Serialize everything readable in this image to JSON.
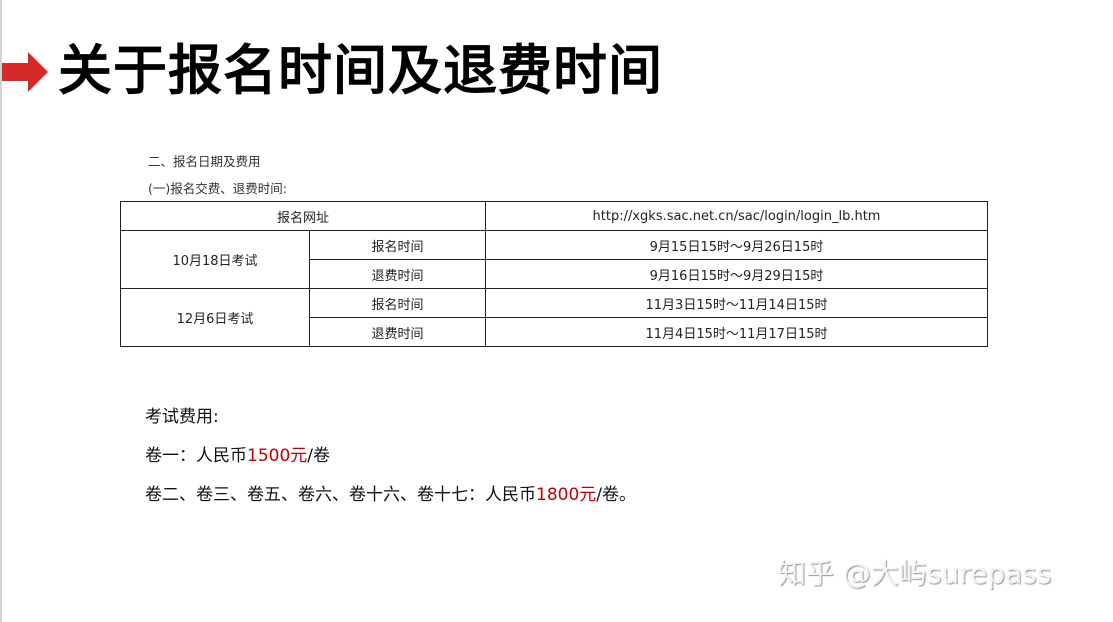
{
  "title": "关于报名时间及退费时间",
  "section": "二、报名日期及费用",
  "subsection": "(一)报名交费、退费时间:",
  "table": {
    "url_label": "报名网址",
    "url": "http://xgks.sac.net.cn/sac/login/login_lb.htm",
    "groups": [
      {
        "exam": "10月18日考试",
        "rows": [
          {
            "label": "报名时间",
            "value": "9月15日15时～9月26日15时"
          },
          {
            "label": "退费时间",
            "value": "9月16日15时～9月29日15时"
          }
        ]
      },
      {
        "exam": "12月6日考试",
        "rows": [
          {
            "label": "报名时间",
            "value": "11月3日15时～11月14日15时"
          },
          {
            "label": "退费时间",
            "value": "11月4日15时～11月17日15时"
          }
        ]
      }
    ]
  },
  "fees": {
    "heading": "考试费用:",
    "line1_prefix": "卷一：人民币",
    "line1_amount": "1500元",
    "line1_suffix": "/卷",
    "line2_prefix": "卷二、卷三、卷五、卷六、卷十六、卷十七：人民币",
    "line2_amount": "1800元",
    "line2_suffix": "/卷。"
  },
  "watermark": "知乎 @大屿surepass",
  "colors": {
    "accent": "#d42a2a",
    "amount": "#c00000"
  },
  "icons": {
    "bullet": "right-arrow-icon"
  }
}
